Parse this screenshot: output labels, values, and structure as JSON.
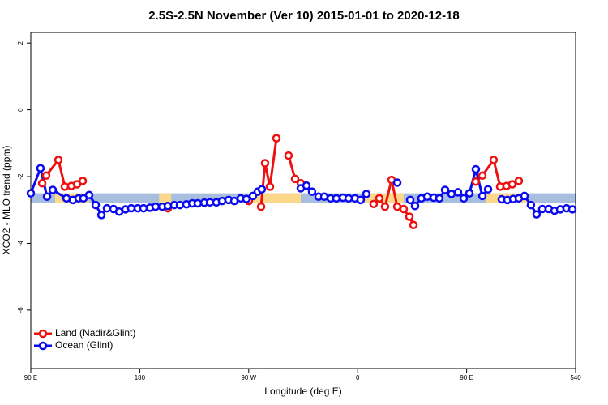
{
  "chart_data": {
    "type": "line",
    "title": "2.5S-2.5N November (Ver 10)   2015-01-01 to 2020-12-18",
    "xlabel": "Longitude (deg E)",
    "ylabel": "XCO2 - MLO trend (ppm)",
    "xlim": [
      90,
      540
    ],
    "ylim": [
      -7.75,
      2.32
    ],
    "xticks": [
      {
        "value": 90,
        "label": "90 E"
      },
      180,
      {
        "value": 270,
        "label": "90 W"
      },
      {
        "value": 360,
        "label": "0"
      },
      {
        "value": 450,
        "label": "90 E"
      },
      540
    ],
    "yticks": [
      2,
      0,
      -2,
      -4,
      -6
    ],
    "legend": "bottom-left",
    "band": {
      "lower": -2.8,
      "upper": -2.5,
      "color": "#a7bedf"
    },
    "land_band": {
      "color": "#fcd88a",
      "ranges": [
        [
          110,
          138
        ],
        [
          196,
          206
        ],
        [
          271,
          313
        ],
        [
          365,
          398
        ],
        [
          466,
          500
        ]
      ]
    },
    "series": [
      {
        "name": "Land (Nadir&Glint)",
        "color": "#ee1111",
        "x": [
          99.4,
          102.7,
          112.8,
          118.1,
          123.5,
          128.2,
          132.9,
          null,
          203.2,
          null,
          270.1,
          null,
          280.2,
          283.5,
          287.5,
          292.9,
          null,
          302.9,
          308.3,
          313.0,
          null,
          373.2,
          377.9,
          382.6,
          388.0,
          392.7,
          398.0,
          402.7,
          406.1,
          null,
          457.6,
          463.0,
          472.3,
          477.7,
          483.0,
          487.7,
          493.1
        ],
        "values": [
          -2.2,
          -1.97,
          -1.5,
          -2.3,
          -2.28,
          -2.23,
          -2.13,
          null,
          -2.95,
          null,
          -2.73,
          null,
          -2.9,
          -1.6,
          -2.3,
          -0.85,
          null,
          -1.37,
          -2.07,
          -2.2,
          null,
          -2.82,
          -2.65,
          -2.9,
          -2.1,
          -2.9,
          -2.97,
          -3.2,
          -3.45,
          null,
          -2.15,
          -1.97,
          -1.5,
          -2.3,
          -2.28,
          -2.23,
          -2.13
        ]
      },
      {
        "name": "Ocean (Glint)",
        "color": "#0a0af0",
        "x": [
          90,
          98.0,
          103.4,
          108.1,
          119.5,
          124.8,
          129.5,
          133.5,
          138.2,
          143.6,
          148.3,
          152.9,
          158.3,
          163.0,
          168.3,
          173.0,
          178.4,
          183.1,
          188.4,
          193.1,
          198.5,
          203.2,
          208.5,
          213.2,
          218.6,
          223.3,
          227.9,
          233.3,
          238.0,
          243.3,
          248.0,
          253.4,
          258.1,
          263.4,
          268.1,
          273.5,
          277.5,
          280.8,
          null,
          313.0,
          317.7,
          322.3,
          327.7,
          332.4,
          337.7,
          342.4,
          347.8,
          352.5,
          357.8,
          362.5,
          367.2,
          null,
          392.7,
          null,
          403.4,
          407.4,
          412.7,
          417.4,
          422.8,
          427.5,
          432.2,
          437.5,
          442.9,
          447.6,
          452.3,
          457.6,
          463.0,
          467.7,
          null,
          479.0,
          483.7,
          488.4,
          493.1,
          497.8,
          503.1,
          507.8,
          512.5,
          517.9,
          522.6,
          527.3,
          532.6,
          537.3
        ],
        "values": [
          -2.5,
          -1.75,
          -2.6,
          -2.4,
          -2.65,
          -2.7,
          -2.65,
          -2.65,
          -2.55,
          -2.85,
          -3.15,
          -2.95,
          -2.97,
          -3.05,
          -2.98,
          -2.95,
          -2.95,
          -2.95,
          -2.93,
          -2.9,
          -2.9,
          -2.88,
          -2.85,
          -2.85,
          -2.83,
          -2.8,
          -2.8,
          -2.78,
          -2.77,
          -2.77,
          -2.73,
          -2.7,
          -2.73,
          -2.65,
          -2.67,
          -2.58,
          -2.45,
          -2.38,
          null,
          -2.35,
          -2.27,
          -2.45,
          -2.6,
          -2.6,
          -2.65,
          -2.65,
          -2.63,
          -2.65,
          -2.65,
          -2.7,
          -2.52,
          null,
          -2.18,
          null,
          -2.7,
          -2.88,
          -2.65,
          -2.6,
          -2.63,
          -2.65,
          -2.4,
          -2.52,
          -2.47,
          -2.65,
          -2.5,
          -1.78,
          -2.58,
          -2.38,
          null,
          -2.68,
          -2.7,
          -2.67,
          -2.65,
          -2.58,
          -2.85,
          -3.13,
          -2.97,
          -2.97,
          -3.02,
          -2.98,
          -2.95,
          -2.98
        ]
      }
    ]
  }
}
